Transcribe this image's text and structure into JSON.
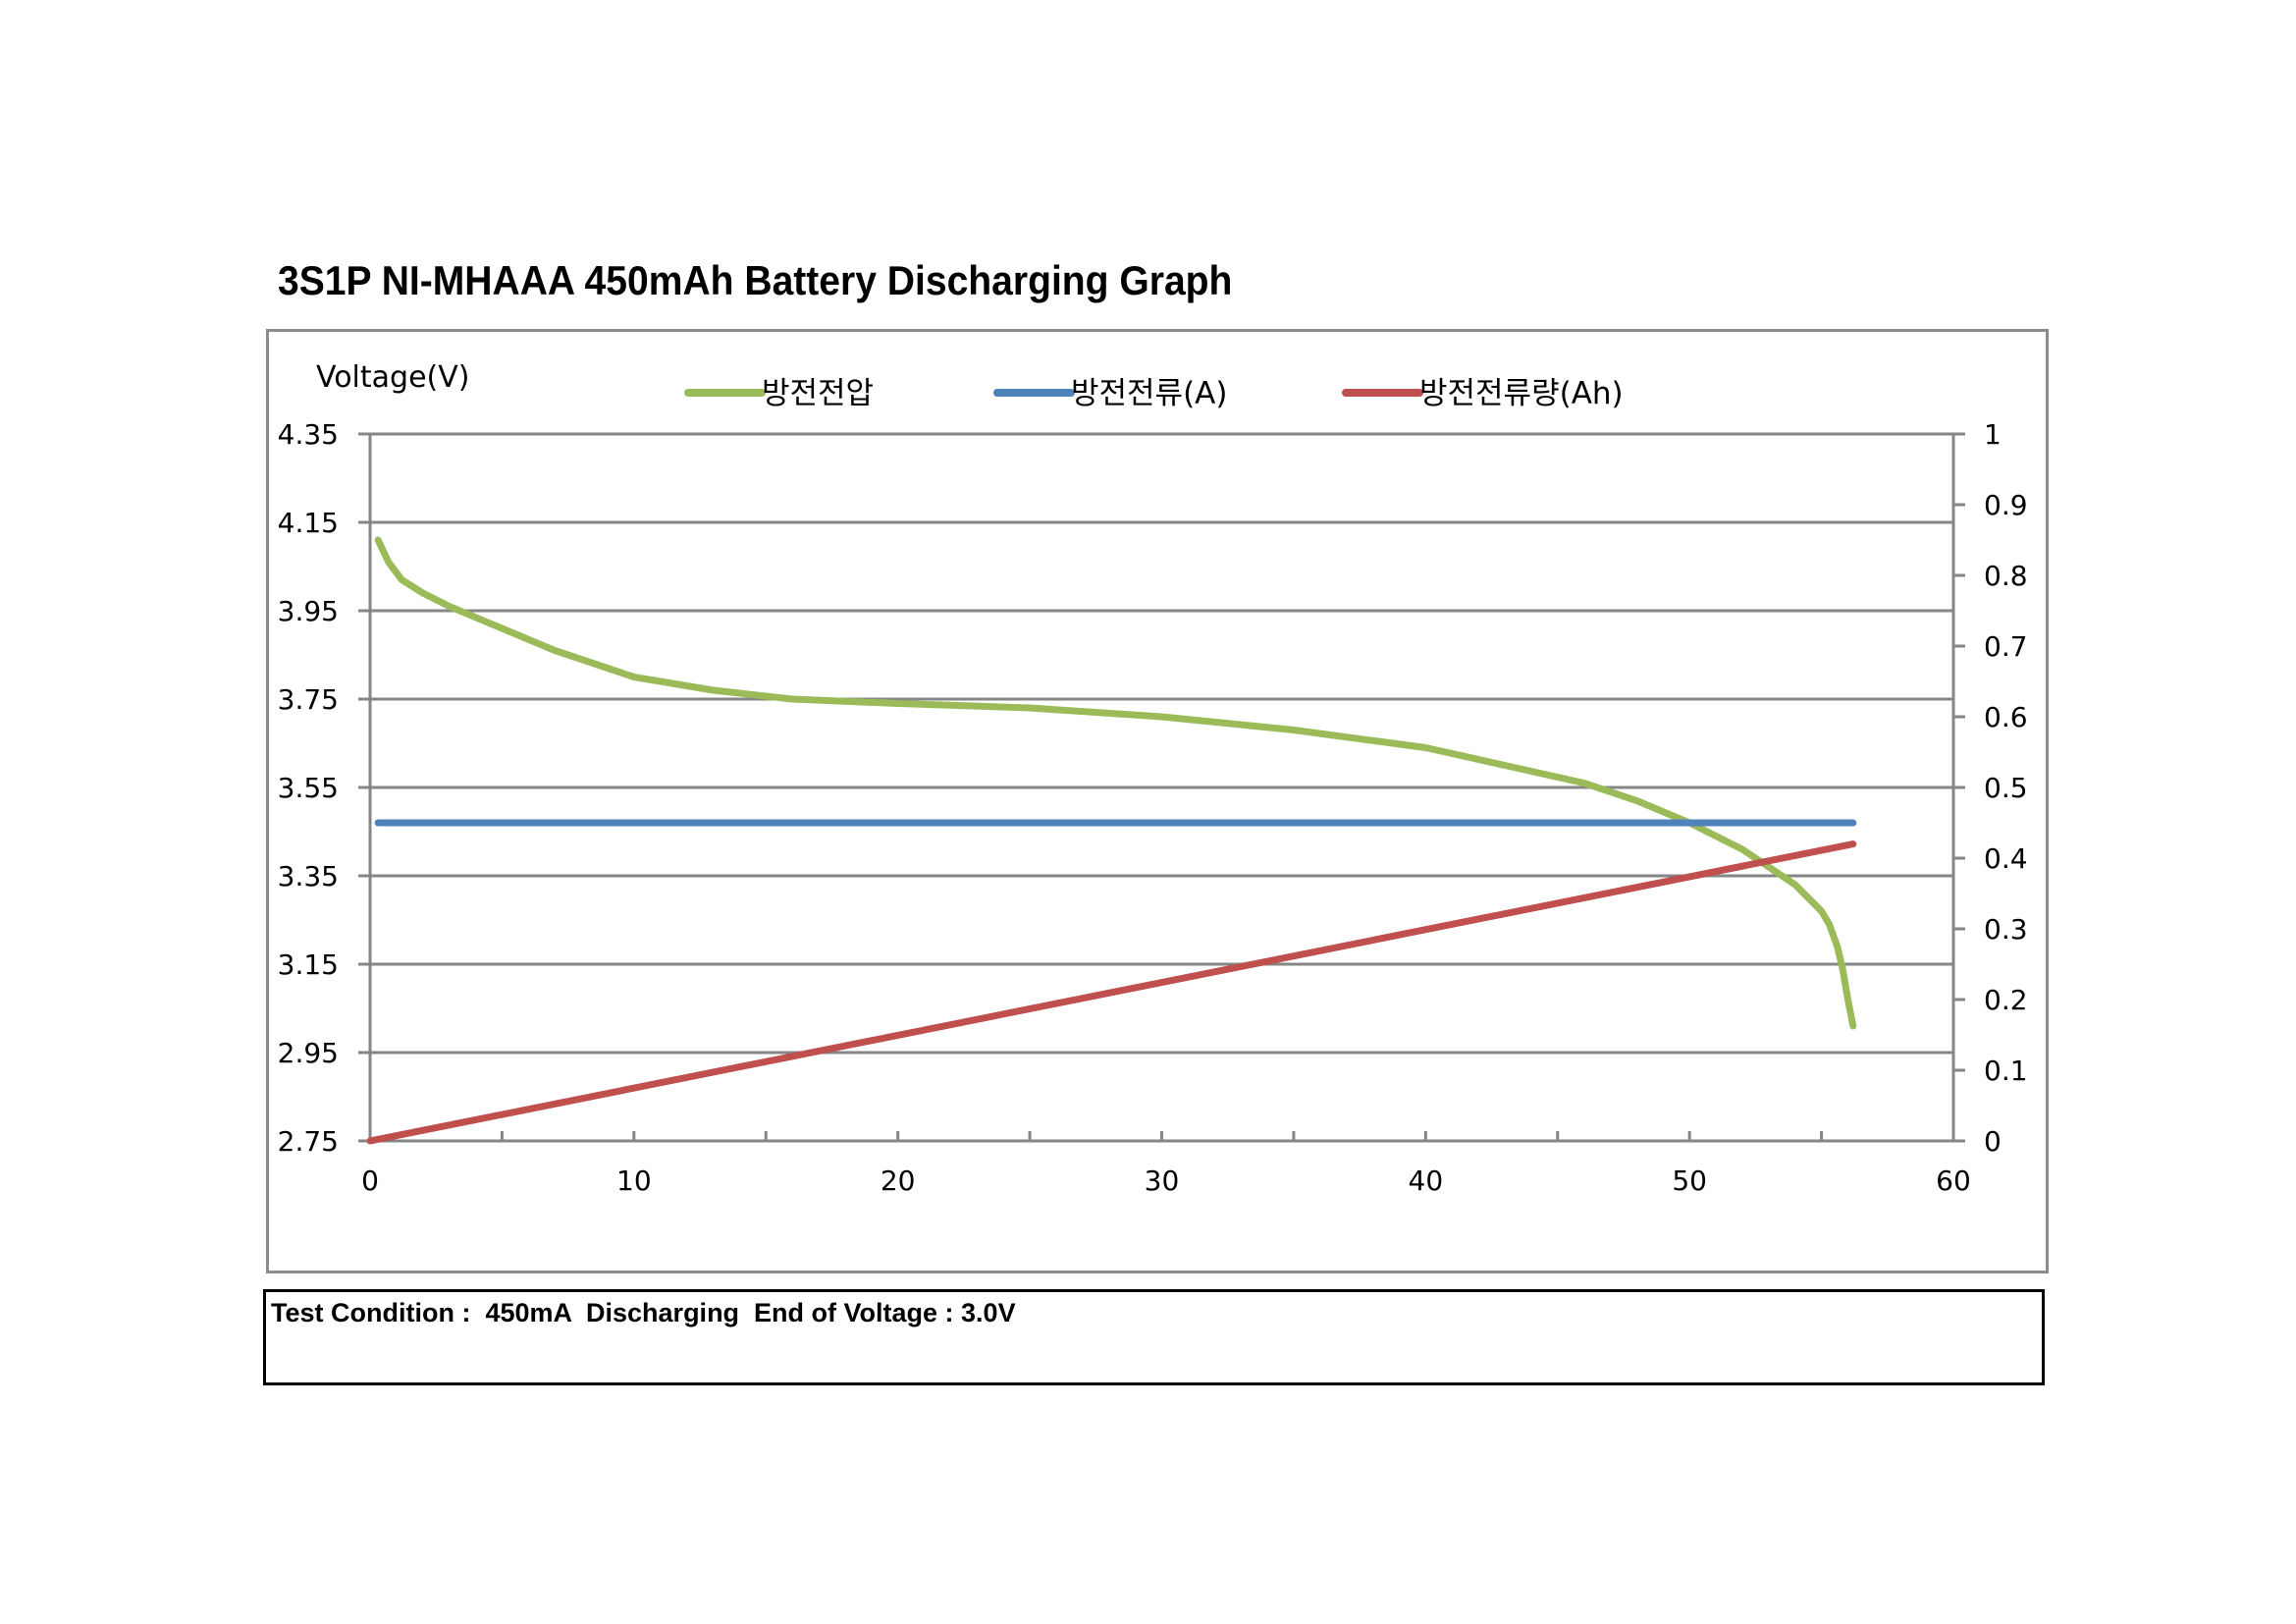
{
  "title": "3S1P NI-MHAAA 450mAh Battery Discharging Graph",
  "test_condition": "Test Condition :  450mA  Discharging  End of Voltage : 3.0V",
  "chart_data": {
    "type": "line",
    "ylabel": "Voltage(V)",
    "xlim": [
      0,
      60
    ],
    "ylim": [
      2.75,
      4.35
    ],
    "y2lim": [
      0,
      1
    ],
    "x_ticks": [
      "0",
      "10",
      "20",
      "30",
      "40",
      "50",
      "60"
    ],
    "y_ticks": [
      "2.75",
      "2.95",
      "3.15",
      "3.35",
      "3.55",
      "3.75",
      "3.95",
      "4.15",
      "4.35"
    ],
    "y2_ticks": [
      "0",
      "0.1",
      "0.2",
      "0.3",
      "0.4",
      "0.5",
      "0.6",
      "0.7",
      "0.8",
      "0.9",
      "1"
    ],
    "grid": true,
    "legend_position": "top",
    "series": [
      {
        "name": "방전전압",
        "axis": "left",
        "color": "#9bbb59",
        "x": [
          0.3,
          0.7,
          1.2,
          2,
          3,
          5,
          7,
          10,
          13,
          16,
          20,
          25,
          30,
          35,
          40,
          43,
          46,
          48,
          50,
          52,
          53,
          54,
          54.5,
          55,
          55.3,
          55.6,
          55.8,
          56,
          56.2
        ],
        "y": [
          4.11,
          4.06,
          4.02,
          3.99,
          3.96,
          3.91,
          3.86,
          3.8,
          3.77,
          3.75,
          3.74,
          3.73,
          3.71,
          3.68,
          3.64,
          3.6,
          3.56,
          3.52,
          3.47,
          3.41,
          3.37,
          3.33,
          3.3,
          3.27,
          3.24,
          3.19,
          3.14,
          3.07,
          3.01
        ]
      },
      {
        "name": "방전전류(A)",
        "axis": "right",
        "color": "#4f81bd",
        "x": [
          0.3,
          56.2
        ],
        "y": [
          0.45,
          0.45
        ]
      },
      {
        "name": "방전전류량(Ah)",
        "axis": "right",
        "color": "#c0504d",
        "x": [
          0,
          56.2
        ],
        "y": [
          0,
          0.42
        ]
      }
    ]
  }
}
